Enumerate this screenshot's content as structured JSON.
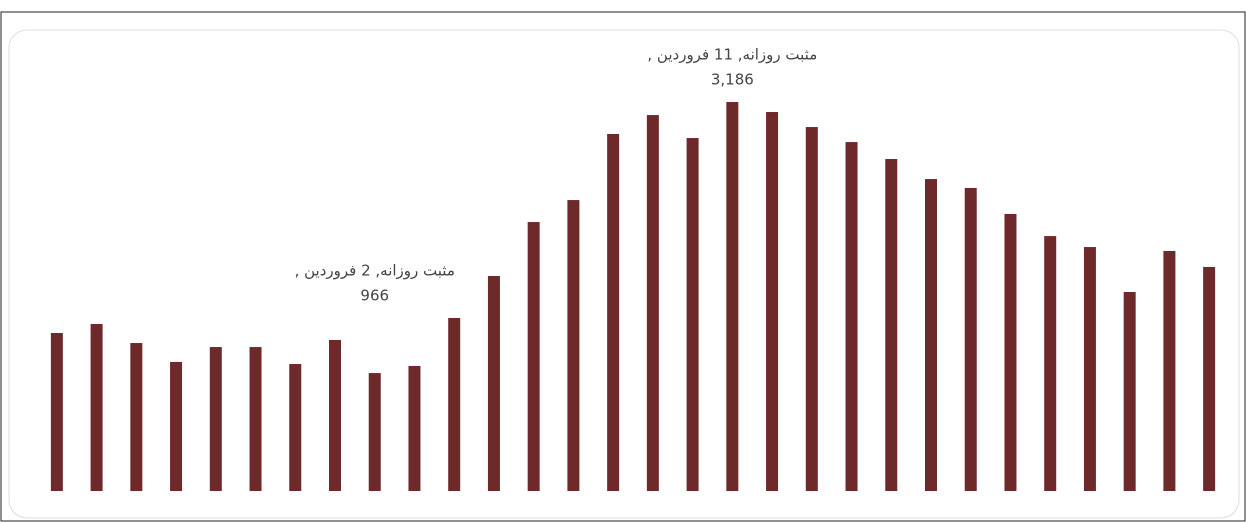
{
  "chart_data": {
    "type": "bar",
    "series": [
      {
        "name": "مثبت روزانه",
        "color": "#6e2a2a",
        "values": [
          1294,
          1368,
          1212,
          1057,
          1179,
          1179,
          1040,
          1237,
          966,
          1024,
          1417,
          1761,
          2203,
          2383,
          2924,
          3079,
          2891,
          3186,
          3104,
          2981,
          2858,
          2719,
          2555,
          2482,
          2269,
          2088,
          1998,
          1630,
          1966,
          1835
        ],
        "value_labels": [
          null,
          null,
          null,
          null,
          null,
          null,
          null,
          null,
          "966",
          null,
          null,
          null,
          null,
          null,
          null,
          null,
          null,
          "3,186",
          null,
          null,
          null,
          null,
          null,
          null,
          null,
          null,
          null,
          null,
          null,
          null
        ],
        "annotations": [
          null,
          null,
          null,
          null,
          null,
          null,
          null,
          null,
          "مثبت روزانه, 2 فروردین ,",
          null,
          null,
          null,
          null,
          null,
          null,
          null,
          null,
          "مثبت روزانه, 11 فروردین ,",
          null,
          null,
          null,
          null,
          null,
          null,
          null,
          null,
          null,
          null,
          null,
          null
        ]
      }
    ]
  }
}
